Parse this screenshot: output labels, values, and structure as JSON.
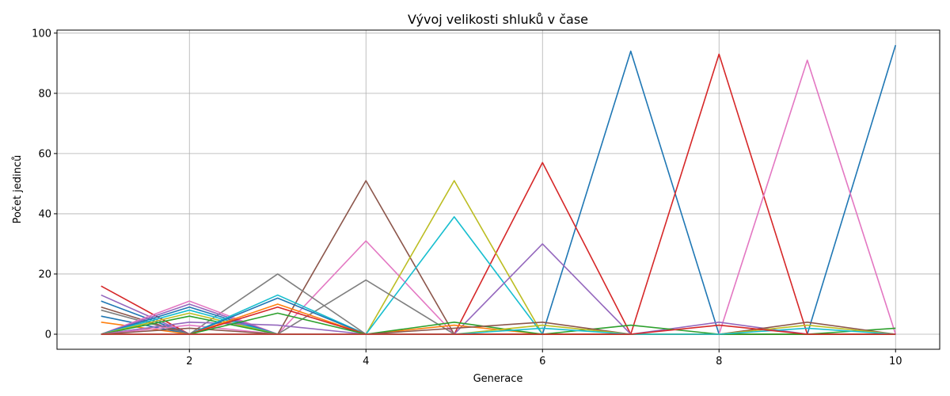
{
  "chart_data": {
    "type": "line",
    "title": "Vývoj velikosti shluků v čase",
    "xlabel": "Generace",
    "ylabel": "Počet jedinců",
    "xlim": [
      0.5,
      10.5
    ],
    "ylim": [
      -5,
      101
    ],
    "x_ticks": [
      2,
      4,
      6,
      8,
      10
    ],
    "y_ticks": [
      0,
      20,
      40,
      60,
      80,
      100
    ],
    "grid": true,
    "x": [
      1,
      2,
      3,
      4,
      5,
      6,
      7,
      8,
      9,
      10
    ],
    "series": [
      {
        "color": "#1f77b4",
        "values": [
          0,
          0,
          0,
          0,
          0,
          0,
          94,
          0,
          0,
          96
        ]
      },
      {
        "color": "#d62728",
        "values": [
          0,
          0,
          0,
          0,
          0,
          57,
          0,
          93,
          0,
          0
        ]
      },
      {
        "color": "#e377c2",
        "values": [
          0,
          0,
          0,
          31,
          0,
          0,
          0,
          0,
          91,
          0
        ]
      },
      {
        "color": "#8c564b",
        "values": [
          0,
          0,
          0,
          51,
          0,
          0,
          0,
          0,
          0,
          0
        ]
      },
      {
        "color": "#bcbd22",
        "values": [
          0,
          0,
          0,
          0,
          51,
          0,
          0,
          0,
          0,
          0
        ]
      },
      {
        "color": "#17becf",
        "values": [
          0,
          0,
          0,
          0,
          39,
          0,
          0,
          0,
          0,
          0
        ]
      },
      {
        "color": "#9467bd",
        "values": [
          0,
          0,
          0,
          0,
          0,
          30,
          0,
          0,
          0,
          0
        ]
      },
      {
        "color": "#7f7f7f",
        "values": [
          0,
          0,
          20,
          0,
          0,
          0,
          0,
          0,
          0,
          0
        ]
      },
      {
        "color": "#7f7f7f",
        "values": [
          0,
          0,
          0,
          18,
          0,
          0,
          0,
          0,
          0,
          0
        ]
      },
      {
        "color": "#d62728",
        "values": [
          16,
          0,
          0,
          0,
          0,
          0,
          0,
          0,
          0,
          0
        ]
      },
      {
        "color": "#9467bd",
        "values": [
          13,
          0,
          0,
          0,
          0,
          0,
          0,
          0,
          0,
          0
        ]
      },
      {
        "color": "#1f77b4",
        "values": [
          11,
          0,
          0,
          0,
          0,
          0,
          0,
          0,
          0,
          0
        ]
      },
      {
        "color": "#8c564b",
        "values": [
          9,
          0,
          0,
          0,
          0,
          0,
          0,
          0,
          0,
          0
        ]
      },
      {
        "color": "#7f7f7f",
        "values": [
          8,
          0,
          0,
          0,
          0,
          0,
          0,
          0,
          0,
          0
        ]
      },
      {
        "color": "#1f77b4",
        "values": [
          6,
          0,
          0,
          0,
          0,
          0,
          0,
          0,
          0,
          0
        ]
      },
      {
        "color": "#ff7f0e",
        "values": [
          4,
          0,
          0,
          0,
          0,
          0,
          0,
          0,
          0,
          0
        ]
      },
      {
        "color": "#e377c2",
        "values": [
          0,
          11,
          0,
          0,
          0,
          0,
          0,
          0,
          0,
          0
        ]
      },
      {
        "color": "#9467bd",
        "values": [
          0,
          10,
          0,
          0,
          0,
          0,
          0,
          0,
          0,
          0
        ]
      },
      {
        "color": "#1f77b4",
        "values": [
          0,
          9,
          0,
          0,
          0,
          0,
          0,
          0,
          0,
          0
        ]
      },
      {
        "color": "#17becf",
        "values": [
          0,
          8,
          0,
          0,
          0,
          0,
          0,
          0,
          0,
          0
        ]
      },
      {
        "color": "#bcbd22",
        "values": [
          0,
          7,
          0,
          0,
          0,
          0,
          0,
          0,
          0,
          0
        ]
      },
      {
        "color": "#2ca02c",
        "values": [
          0,
          6,
          0,
          0,
          0,
          0,
          0,
          0,
          0,
          0
        ]
      },
      {
        "color": "#9467bd",
        "values": [
          0,
          4,
          3,
          0,
          0,
          0,
          0,
          4,
          0,
          0
        ]
      },
      {
        "color": "#e377c2",
        "values": [
          0,
          3,
          0,
          0,
          0,
          0,
          0,
          0,
          0,
          0
        ]
      },
      {
        "color": "#8c564b",
        "values": [
          0,
          2,
          0,
          0,
          0,
          0,
          0,
          0,
          0,
          0
        ]
      },
      {
        "color": "#17becf",
        "values": [
          0,
          0,
          13,
          0,
          0,
          0,
          0,
          0,
          0,
          0
        ]
      },
      {
        "color": "#1f77b4",
        "values": [
          0,
          0,
          12,
          0,
          0,
          0,
          0,
          0,
          0,
          0
        ]
      },
      {
        "color": "#ff7f0e",
        "values": [
          0,
          0,
          10,
          0,
          3,
          0,
          0,
          0,
          0,
          0
        ]
      },
      {
        "color": "#d62728",
        "values": [
          0,
          0,
          9,
          0,
          0,
          0,
          0,
          0,
          0,
          0
        ]
      },
      {
        "color": "#2ca02c",
        "values": [
          0,
          0,
          7,
          0,
          0,
          0,
          0,
          0,
          0,
          0
        ]
      },
      {
        "color": "#2ca02c",
        "values": [
          0,
          0,
          0,
          0,
          4,
          0,
          3,
          0,
          0,
          2
        ]
      },
      {
        "color": "#8c564b",
        "values": [
          0,
          0,
          0,
          0,
          2,
          4,
          0,
          0,
          4,
          0
        ]
      },
      {
        "color": "#bcbd22",
        "values": [
          0,
          0,
          0,
          0,
          0,
          3,
          0,
          0,
          3,
          0
        ]
      },
      {
        "color": "#17becf",
        "values": [
          0,
          0,
          0,
          0,
          0,
          2,
          0,
          0,
          2,
          0
        ]
      },
      {
        "color": "#d62728",
        "values": [
          0,
          0,
          0,
          0,
          0,
          0,
          0,
          3,
          0,
          0
        ]
      }
    ]
  }
}
